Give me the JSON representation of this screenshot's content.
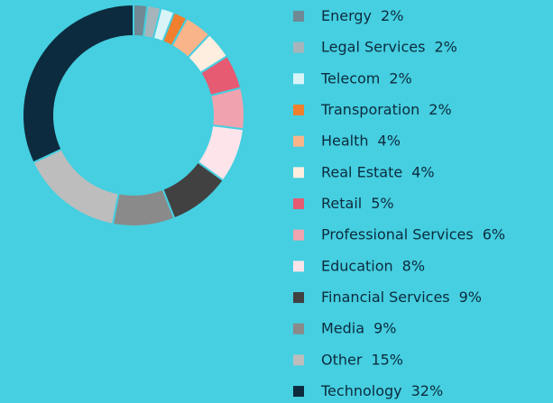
{
  "chart_data": {
    "type": "pie",
    "donut": true,
    "categories": [
      "Energy",
      "Legal Services",
      "Telecom",
      "Transporation",
      "Health",
      "Real Estate",
      "Retail",
      "Professional Services",
      "Education",
      "Financial Services",
      "Media",
      "Other",
      "Technology"
    ],
    "values": [
      2,
      2,
      2,
      2,
      4,
      4,
      5,
      6,
      8,
      9,
      9,
      15,
      32
    ],
    "value_labels": [
      "2%",
      "2%",
      "2%",
      "2%",
      "4%",
      "4%",
      "5%",
      "6%",
      "8%",
      "9%",
      "9%",
      "15%",
      "32%"
    ],
    "colors": [
      "#6f8a94",
      "#a6b5bb",
      "#d9f4f7",
      "#f07f2e",
      "#f9b48a",
      "#fdeee0",
      "#e65a72",
      "#f0a3ae",
      "#fde4ea",
      "#414141",
      "#8a8a8a",
      "#bdbdbd",
      "#0d2b3e"
    ],
    "legend": "right"
  }
}
